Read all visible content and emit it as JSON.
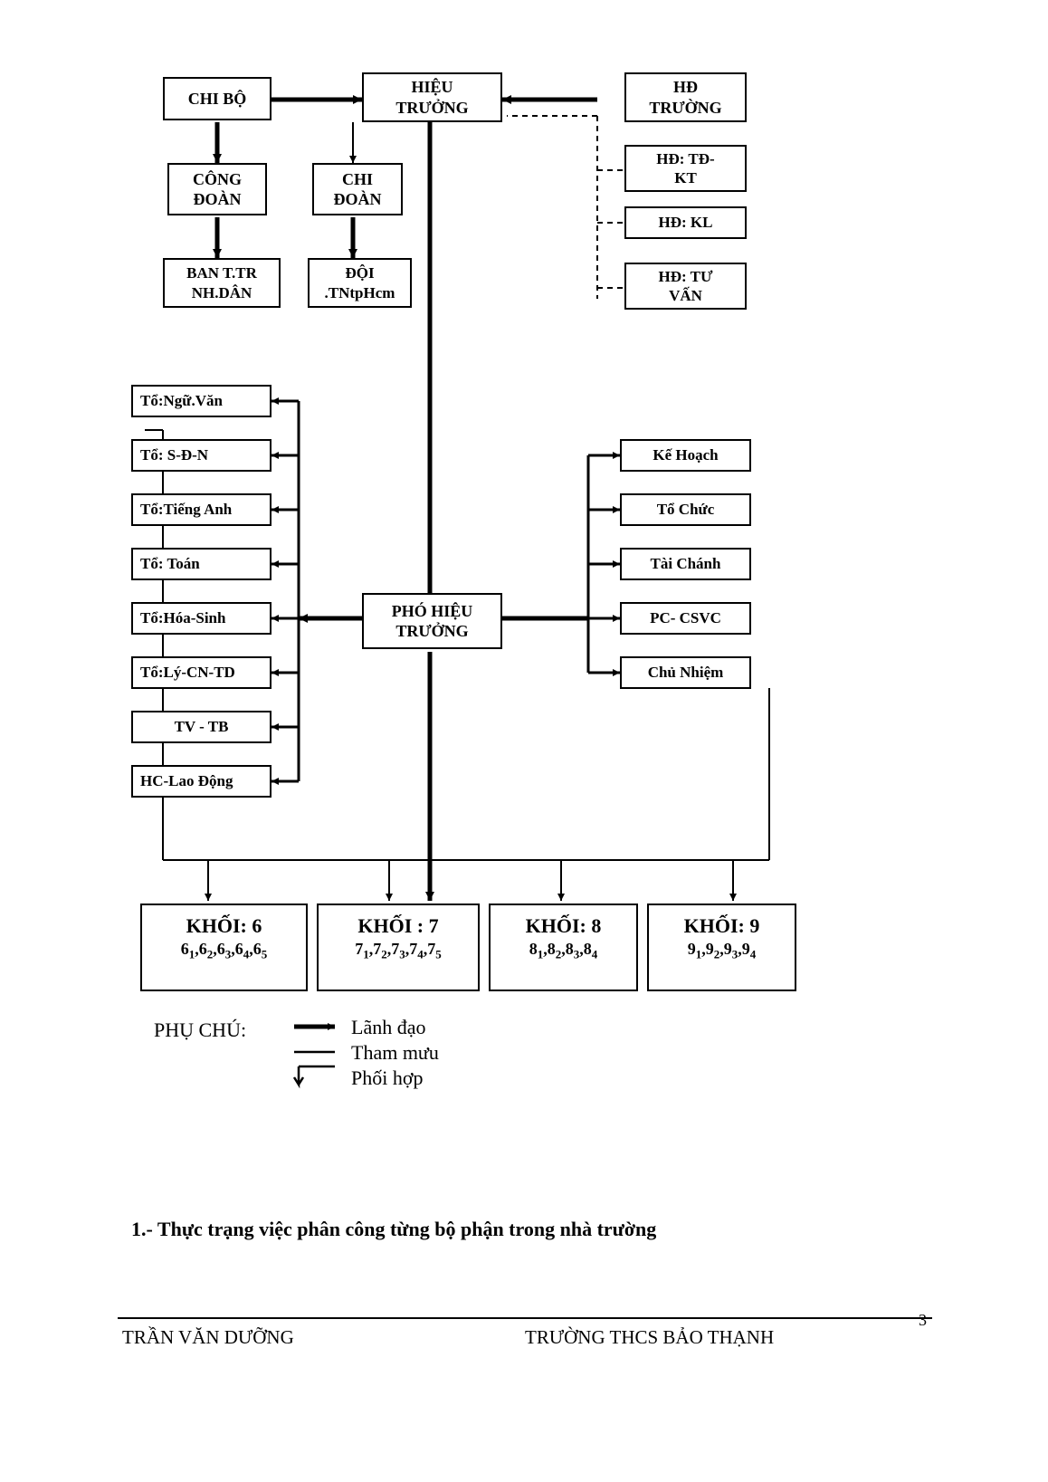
{
  "colors": {
    "line": "#000000",
    "bg": "#ffffff"
  },
  "nodes": {
    "chibo": {
      "label": "CHI BỘ"
    },
    "hieutruong": {
      "label1": "HIỆU",
      "label2": "TRƯỞNG"
    },
    "hdtruong": {
      "label1": "HĐ",
      "label2": "TRƯỜNG"
    },
    "congdoan": {
      "label1": "CÔNG",
      "label2": "ĐOÀN"
    },
    "chidoan": {
      "label1": "CHI",
      "label2": "ĐOÀN"
    },
    "hdtdkt": {
      "label1": "HĐ: TĐ-",
      "label2": "KT"
    },
    "hdkl": {
      "label": "HĐ: KL"
    },
    "hdtuvan": {
      "label1": "HĐ: TƯ",
      "label2": "VẤN"
    },
    "banttr": {
      "label1": "BAN T.TR",
      "label2": "NH.DÂN"
    },
    "doi": {
      "label1": "ĐỘI",
      "label2": ".TNtpHcm"
    },
    "to1": {
      "label": "Tổ:Ngữ.Văn"
    },
    "to2": {
      "label": "Tổ: S-Đ-N"
    },
    "to3": {
      "label": "Tổ:Tiếng Anh"
    },
    "to4": {
      "label": "Tổ: Toán"
    },
    "to5": {
      "label": "Tổ:Hóa-Sinh"
    },
    "to6": {
      "label": "Tổ:Lý-CN-TD"
    },
    "to7": {
      "label": "TV - TB"
    },
    "to8": {
      "label": "HC-Lao Động"
    },
    "phohieu": {
      "label1": "PHÓ HIỆU",
      "label2": "TRƯỞNG"
    },
    "r1": {
      "label": "Kế Hoạch"
    },
    "r2": {
      "label": "Tổ Chức"
    },
    "r3": {
      "label": "Tài Chánh"
    },
    "r4": {
      "label": "PC- CSVC"
    },
    "r5": {
      "label": "Chủ Nhiệm"
    }
  },
  "khoi": [
    {
      "title": "KHỐI: 6",
      "sub_html": "6<sub>1</sub>,6<sub>2</sub>,6<sub>3</sub>,6<sub>4</sub>,6<sub>5</sub>"
    },
    {
      "title": "KHỐI : 7",
      "sub_html": "7<sub>1</sub>,7<sub>2</sub>,7<sub>3</sub>,7<sub>4</sub>,7<sub>5</sub>"
    },
    {
      "title": "KHỐI: 8",
      "sub_html": "8<sub>1</sub>,8<sub>2</sub>,8<sub>3</sub>,8<sub>4</sub>"
    },
    {
      "title": "KHỐI: 9",
      "sub_html": "9<sub>1</sub>,9<sub>2</sub>,9<sub>3</sub>,9<sub>4</sub>"
    }
  ],
  "legend": {
    "title": "PHỤ CHÚ:",
    "items": [
      "Lãnh đạo",
      "Tham mưu",
      "Phối hợp"
    ]
  },
  "section_heading": "1.- Thực trạng việc phân công từng bộ phận trong nhà trường",
  "footer": {
    "left": "TRẦN VĂN DƯỠNG",
    "right": "TRƯỜNG THCS BẢO THẠNH",
    "page": "3"
  }
}
